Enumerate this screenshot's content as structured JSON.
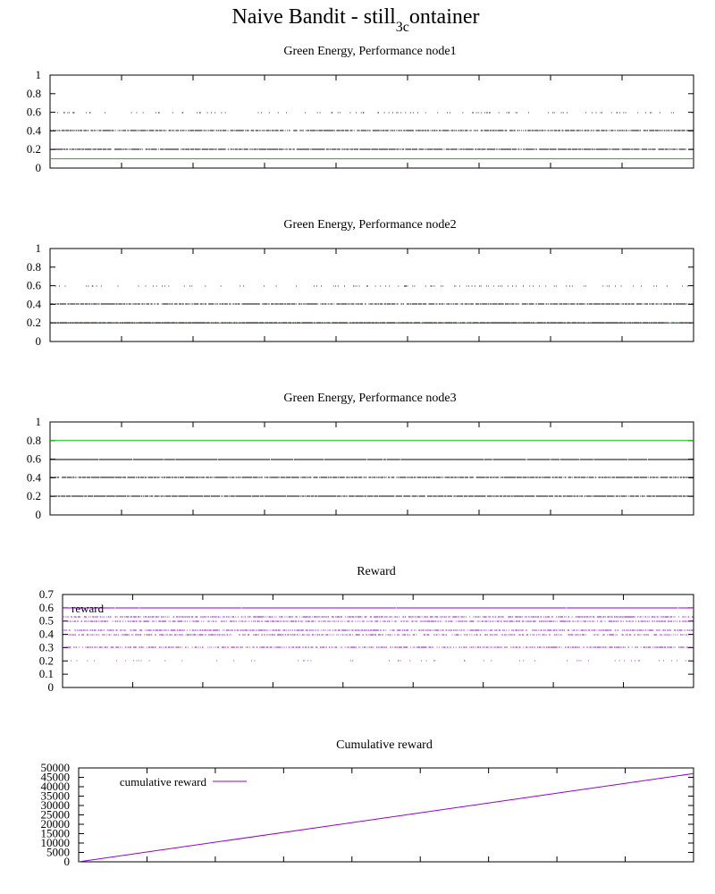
{
  "figure": {
    "title_main": "Naive Bandit - still",
    "title_sub": "3c",
    "title_tail": "ontainer"
  },
  "colors": {
    "axis": "#000000",
    "points": "#000000",
    "green": "#00c000",
    "purple": "#9400d3"
  },
  "chart_data": [
    {
      "type": "scatter",
      "title": "Green Energy, Performance node1",
      "ylim": [
        0,
        1
      ],
      "yticks": [
        "0",
        "0.2",
        "0.4",
        "0.6",
        "0.8",
        "1"
      ],
      "x_range": [
        0,
        1000
      ],
      "xtick_count": 9,
      "series": [
        {
          "level": 0.2,
          "density": 0.82
        },
        {
          "level": 0.4,
          "density": 0.72
        },
        {
          "level": 0.6,
          "density": 0.1
        }
      ],
      "reference_line": {
        "value": 0.1,
        "color": "#00c000"
      }
    },
    {
      "type": "scatter",
      "title": "Green Energy, Performance node2",
      "ylim": [
        0,
        1
      ],
      "yticks": [
        "0",
        "0.2",
        "0.4",
        "0.6",
        "0.8",
        "1"
      ],
      "x_range": [
        0,
        1000
      ],
      "xtick_count": 9,
      "series": [
        {
          "level": 0.2,
          "density": 0.8
        },
        {
          "level": 0.4,
          "density": 0.72
        },
        {
          "level": 0.6,
          "density": 0.12
        }
      ],
      "reference_line": {
        "value": 0.2,
        "color": "#00c000"
      }
    },
    {
      "type": "scatter",
      "title": "Green Energy, Performance node3",
      "ylim": [
        0,
        1
      ],
      "yticks": [
        "0",
        "0.2",
        "0.4",
        "0.6",
        "0.8",
        "1"
      ],
      "x_range": [
        0,
        1000
      ],
      "xtick_count": 9,
      "series": [
        {
          "level": 0.2,
          "density": 0.85
        },
        {
          "level": 0.4,
          "density": 0.8
        },
        {
          "level": 0.6,
          "density": 0.98
        }
      ],
      "reference_line": {
        "value": 0.8,
        "color": "#00c000"
      }
    },
    {
      "type": "scatter",
      "title": "Reward",
      "ylim": [
        0,
        0.7
      ],
      "yticks": [
        "0",
        "0.1",
        "0.2",
        "0.3",
        "0.4",
        "0.5",
        "0.6",
        "0.7"
      ],
      "x_range": [
        0,
        1000
      ],
      "xtick_count": 9,
      "legend": "reward",
      "legend_position": "top-left",
      "series": [
        {
          "level": 0.2,
          "density": 0.06
        },
        {
          "level": 0.3,
          "density": 0.5
        },
        {
          "level": 0.4,
          "density": 0.45
        },
        {
          "level": 0.43,
          "density": 0.55
        },
        {
          "level": 0.5,
          "density": 0.5
        },
        {
          "level": 0.53,
          "density": 0.55
        },
        {
          "level": 0.6,
          "density": 0.995
        }
      ]
    },
    {
      "type": "line",
      "title": "Cumulative reward",
      "ylim": [
        0,
        50000
      ],
      "yticks": [
        "0",
        "5000",
        "10000",
        "15000",
        "20000",
        "25000",
        "30000",
        "35000",
        "40000",
        "45000",
        "50000"
      ],
      "x_range": [
        0,
        1000
      ],
      "xtick_count": 9,
      "legend": "cumulative reward",
      "legend_position": "top-left",
      "series": [
        {
          "name": "cumulative reward",
          "x": [
            0,
            1000
          ],
          "y": [
            0,
            47000
          ]
        }
      ]
    }
  ]
}
